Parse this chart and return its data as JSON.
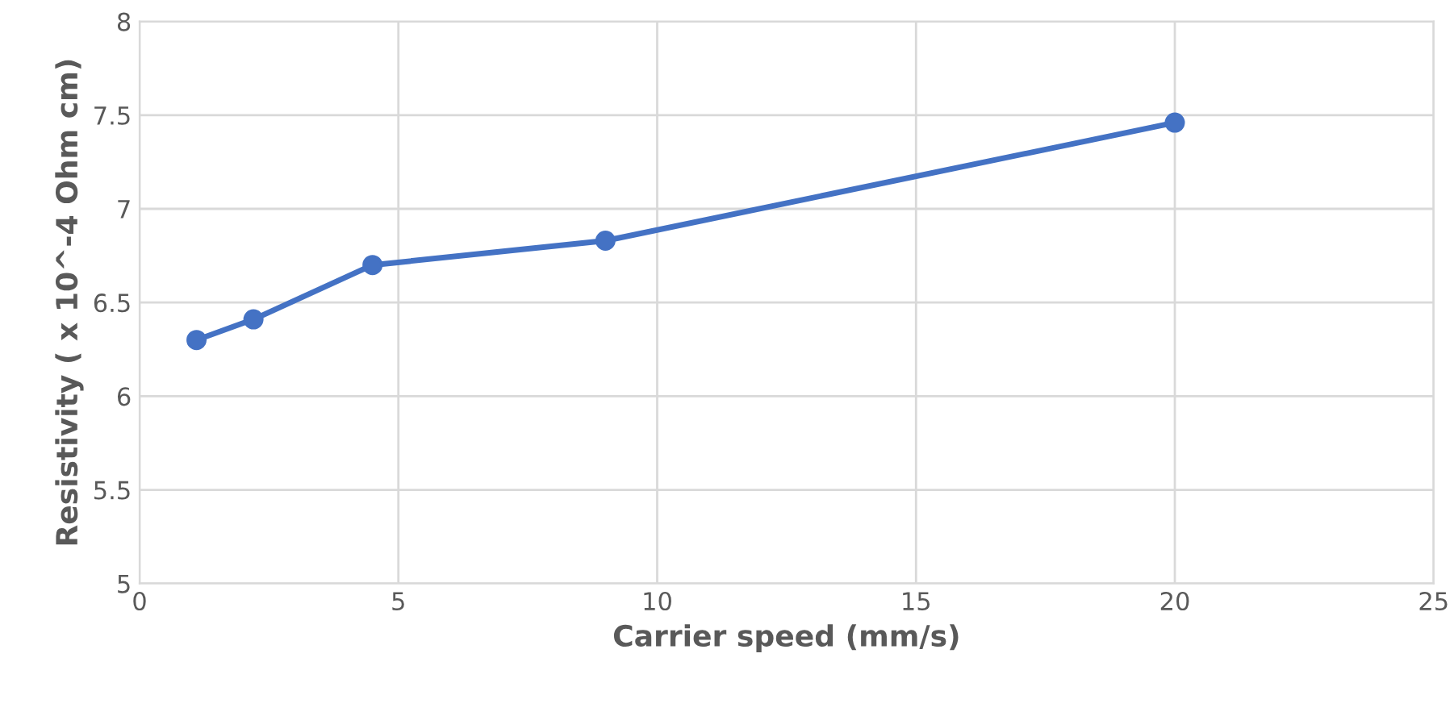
{
  "chart_data": {
    "type": "line",
    "xlabel": "Carrier speed (mm/s)",
    "ylabel": "Resistivity ( x 10^-4 Ohm cm)",
    "series": [
      {
        "color": "#4472c4",
        "x": [
          1.1,
          2.2,
          4.5,
          9,
          20
        ],
        "values": [
          6.3,
          6.41,
          6.7,
          6.83,
          7.46
        ]
      }
    ],
    "xlim": [
      0,
      25
    ],
    "xticks": [
      0,
      5,
      10,
      15,
      20,
      25
    ],
    "ylim": [
      5,
      8
    ],
    "yticks": [
      5,
      5.5,
      6,
      6.5,
      7,
      7.5,
      8
    ],
    "grid": true,
    "marker": "circle",
    "line_style": "solid"
  }
}
